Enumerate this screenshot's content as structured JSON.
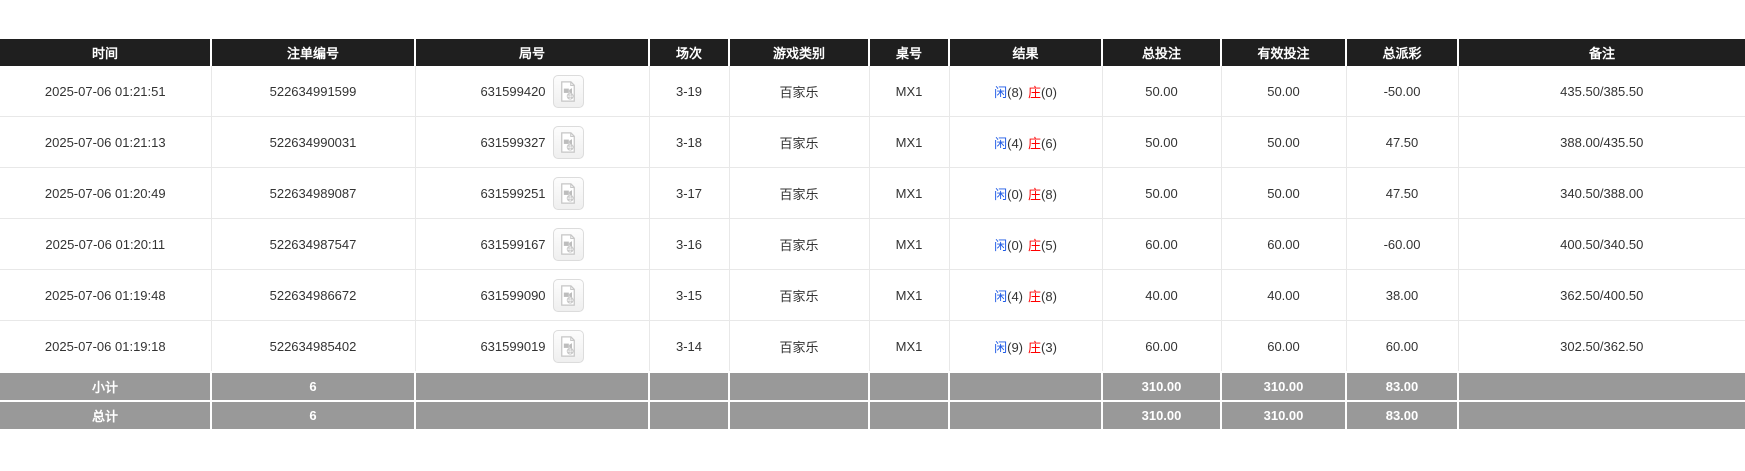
{
  "colors": {
    "header_bg": "#1f1f1f",
    "summary_bg": "#999999",
    "blue": "#1e5ae6",
    "red": "#ff0000",
    "text": "#333333"
  },
  "icons": {
    "round_action": "video-replay-icon"
  },
  "table": {
    "columns": [
      {
        "key": "time",
        "label": "时间"
      },
      {
        "key": "bet_id",
        "label": "注单编号"
      },
      {
        "key": "round_no",
        "label": "局号"
      },
      {
        "key": "session",
        "label": "场次"
      },
      {
        "key": "game_type",
        "label": "游戏类别"
      },
      {
        "key": "table_no",
        "label": "桌号"
      },
      {
        "key": "result",
        "label": "结果"
      },
      {
        "key": "total_bet",
        "label": "总投注"
      },
      {
        "key": "valid_bet",
        "label": "有效投注"
      },
      {
        "key": "total_payout",
        "label": "总派彩"
      },
      {
        "key": "remark",
        "label": "备注"
      }
    ],
    "rows": [
      {
        "time": "2025-07-06 01:21:51",
        "bet_id": "522634991599",
        "round_no": "631599420",
        "session": "3-19",
        "game_type": "百家乐",
        "table_no": "MX1",
        "result": {
          "player_label": "闲",
          "player_score": "(8)",
          "banker_label": "庄",
          "banker_score": "(0)"
        },
        "total_bet": "50.00",
        "valid_bet": "50.00",
        "total_payout": "-50.00",
        "remark": "435.50/385.50"
      },
      {
        "time": "2025-07-06 01:21:13",
        "bet_id": "522634990031",
        "round_no": "631599327",
        "session": "3-18",
        "game_type": "百家乐",
        "table_no": "MX1",
        "result": {
          "player_label": "闲",
          "player_score": "(4)",
          "banker_label": "庄",
          "banker_score": "(6)"
        },
        "total_bet": "50.00",
        "valid_bet": "50.00",
        "total_payout": "47.50",
        "remark": "388.00/435.50"
      },
      {
        "time": "2025-07-06 01:20:49",
        "bet_id": "522634989087",
        "round_no": "631599251",
        "session": "3-17",
        "game_type": "百家乐",
        "table_no": "MX1",
        "result": {
          "player_label": "闲",
          "player_score": "(0)",
          "banker_label": "庄",
          "banker_score": "(8)"
        },
        "total_bet": "50.00",
        "valid_bet": "50.00",
        "total_payout": "47.50",
        "remark": "340.50/388.00"
      },
      {
        "time": "2025-07-06 01:20:11",
        "bet_id": "522634987547",
        "round_no": "631599167",
        "session": "3-16",
        "game_type": "百家乐",
        "table_no": "MX1",
        "result": {
          "player_label": "闲",
          "player_score": "(0)",
          "banker_label": "庄",
          "banker_score": "(5)"
        },
        "total_bet": "60.00",
        "valid_bet": "60.00",
        "total_payout": "-60.00",
        "remark": "400.50/340.50"
      },
      {
        "time": "2025-07-06 01:19:48",
        "bet_id": "522634986672",
        "round_no": "631599090",
        "session": "3-15",
        "game_type": "百家乐",
        "table_no": "MX1",
        "result": {
          "player_label": "闲",
          "player_score": "(4)",
          "banker_label": "庄",
          "banker_score": "(8)"
        },
        "total_bet": "40.00",
        "valid_bet": "40.00",
        "total_payout": "38.00",
        "remark": "362.50/400.50"
      },
      {
        "time": "2025-07-06 01:19:18",
        "bet_id": "522634985402",
        "round_no": "631599019",
        "session": "3-14",
        "game_type": "百家乐",
        "table_no": "MX1",
        "result": {
          "player_label": "闲",
          "player_score": "(9)",
          "banker_label": "庄",
          "banker_score": "(3)"
        },
        "total_bet": "60.00",
        "valid_bet": "60.00",
        "total_payout": "60.00",
        "remark": "302.50/362.50"
      }
    ],
    "subtotal": {
      "label": "小计",
      "count": "6",
      "total_bet": "310.00",
      "valid_bet": "310.00",
      "total_payout": "83.00"
    },
    "total": {
      "label": "总计",
      "count": "6",
      "total_bet": "310.00",
      "valid_bet": "310.00",
      "total_payout": "83.00"
    }
  }
}
